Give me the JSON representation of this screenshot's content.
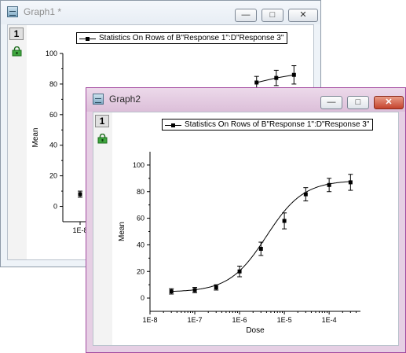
{
  "windows": {
    "graph1": {
      "title": "Graph1 *",
      "layer_label": "1",
      "legend": "Statistics On Rows of B\"Response 1\":D\"Response 3\""
    },
    "graph2": {
      "title": "Graph2",
      "layer_label": "1",
      "legend": "Statistics On Rows of B\"Response 1\":D\"Response 3\""
    },
    "controls": {
      "minimize": "—",
      "maximize": "□",
      "close": "✕"
    }
  },
  "colors": {
    "active_frame": "#a34aa0",
    "inactive_frame": "#8e9aa8",
    "close_button": "#c4432d",
    "lock_icon": "#3fa63f"
  },
  "chart_data": [
    {
      "id": "graph1",
      "type": "scatter",
      "ylabel": "Mean",
      "xlabel": "",
      "ylim": [
        -10,
        100
      ],
      "y_ticks": [
        "0",
        "20",
        "40",
        "60",
        "80",
        "100"
      ],
      "x_tick_visible": "1E-8",
      "visible_points": [
        {
          "x": 3e-08,
          "y": 8,
          "err": 2
        },
        {
          "x": 3e-05,
          "y": 81,
          "err": 4
        },
        {
          "x": 7e-05,
          "y": 84,
          "err": 5
        },
        {
          "x": 0.00015,
          "y": 86,
          "err": 6
        }
      ],
      "legend": "Statistics On Rows of B\"Response 1\":D\"Response 3\"",
      "grid": false,
      "legend_position": "top-right"
    },
    {
      "id": "graph2",
      "type": "scatter",
      "xscale": "log",
      "xlabel": "Dose",
      "ylabel": "Mean",
      "xlim": [
        1e-08,
        0.0005
      ],
      "ylim": [
        -10,
        110
      ],
      "x_ticks": [
        "1E-8",
        "1E-7",
        "1E-6",
        "1E-5",
        "1E-4"
      ],
      "y_ticks": [
        "0",
        "20",
        "40",
        "60",
        "80",
        "100"
      ],
      "series": [
        {
          "name": "Statistics On Rows of B\"Response 1\":D\"Response 3\"",
          "points": [
            {
              "x": 3e-08,
              "y": 5,
              "err": 2
            },
            {
              "x": 1e-07,
              "y": 6,
              "err": 2
            },
            {
              "x": 3e-07,
              "y": 8,
              "err": 2
            },
            {
              "x": 1e-06,
              "y": 20,
              "err": 4
            },
            {
              "x": 3e-06,
              "y": 37,
              "err": 5
            },
            {
              "x": 1e-05,
              "y": 58,
              "err": 6
            },
            {
              "x": 3e-05,
              "y": 78,
              "err": 5
            },
            {
              "x": 0.0001,
              "y": 85,
              "err": 5
            },
            {
              "x": 0.0003,
              "y": 87,
              "err": 6
            }
          ]
        }
      ],
      "fit_curve": {
        "bottom": 4.5,
        "top": 88.5,
        "logEC50": -5.4,
        "hill": 1.05
      },
      "grid": false,
      "legend_position": "top-right"
    }
  ]
}
